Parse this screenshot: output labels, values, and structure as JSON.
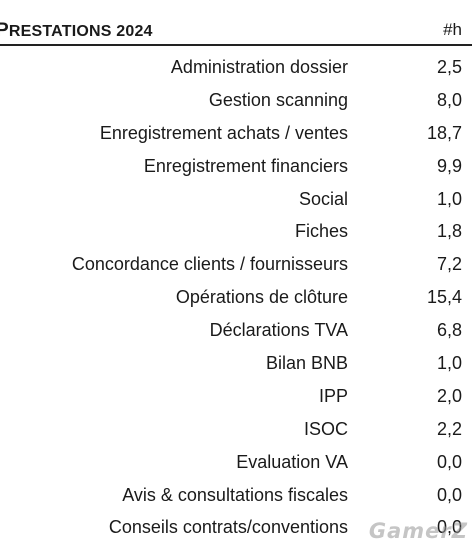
{
  "header": {
    "title_first": "P",
    "title_rest": "RESTATIONS 2024",
    "column": "#h"
  },
  "rows": [
    {
      "label": "Administration dossier",
      "value": "2,5"
    },
    {
      "label": "Gestion scanning",
      "value": "8,0"
    },
    {
      "label": "Enregistrement achats / ventes",
      "value": "18,7"
    },
    {
      "label": "Enregistrement financiers",
      "value": "9,9"
    },
    {
      "label": "Social",
      "value": "1,0"
    },
    {
      "label": "Fiches",
      "value": "1,8"
    },
    {
      "label": "Concordance clients / fournisseurs",
      "value": "7,2"
    },
    {
      "label": "Opérations de clôture",
      "value": "15,4"
    },
    {
      "label": "Déclarations TVA",
      "value": "6,8"
    },
    {
      "label": "Bilan BNB",
      "value": "1,0"
    },
    {
      "label": "IPP",
      "value": "2,0"
    },
    {
      "label": "ISOC",
      "value": "2,2"
    },
    {
      "label": "Evaluation VA",
      "value": "0,0"
    },
    {
      "label": "Avis & consultations fiscales",
      "value": "0,0"
    },
    {
      "label": "Conseils contrats/conventions",
      "value": "0,0"
    }
  ],
  "watermark": "GamerZ"
}
